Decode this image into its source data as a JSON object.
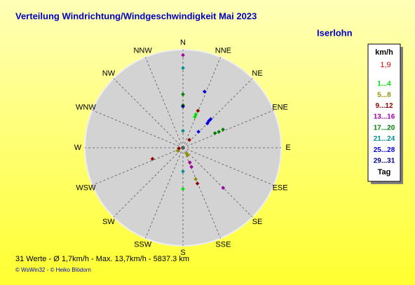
{
  "chart_data": {
    "type": "polar-scatter",
    "title": "Verteilung Windrichtung/Windgeschwindigkeit  Mai 2023",
    "location": "Iserlohn",
    "directions": [
      "N",
      "NNE",
      "NE",
      "ENE",
      "E",
      "ESE",
      "SE",
      "SSE",
      "S",
      "SSW",
      "SW",
      "WSW",
      "W",
      "WNW",
      "NW",
      "NNW"
    ],
    "rlim": [
      0,
      14.5
    ],
    "legend_title": "km/h",
    "average": {
      "value": 1.9,
      "label": "1,9",
      "color": "#e00000"
    },
    "legend_footer": "Tag",
    "series": [
      {
        "name": "1...4",
        "color": "#00e000",
        "direction": [
          21,
          21,
          180
        ],
        "speed": [
          5.3,
          4.9,
          6.1
        ]
      },
      {
        "name": "5...8",
        "color": "#909000",
        "direction": [
          148,
          148,
          158,
          240
        ],
        "speed": [
          1.0,
          1.3,
          5.0,
          0.9
        ]
      },
      {
        "name": "9...12",
        "color": "#900000",
        "direction": [
          22,
          39,
          261,
          250,
          158
        ],
        "speed": [
          5.9,
          1.5,
          0.6,
          4.8,
          5.7
        ]
      },
      {
        "name": "13...16",
        "color": "#a000a0",
        "direction": [
          0,
          155,
          156,
          135
        ],
        "speed": [
          13.7,
          2.4,
          3.1,
          8.4
        ]
      },
      {
        "name": "17...20",
        "color": "#008000",
        "direction": [
          0,
          0,
          65.5,
          66,
          65.5
        ],
        "speed": [
          7.9,
          6.3,
          6.5,
          5.8,
          5.2
        ]
      },
      {
        "name": "21...24",
        "color": "#009090",
        "direction": [
          0,
          0,
          180
        ],
        "speed": [
          11.8,
          2.5,
          3.5
        ]
      },
      {
        "name": "25...28",
        "color": "#0000e0",
        "direction": [
          21,
          44,
          44,
          45,
          44
        ],
        "speed": [
          8.9,
          5.9,
          5.5,
          5.1,
          3.3
        ]
      },
      {
        "name": "29...31",
        "color": "#000080",
        "direction": [
          0
        ],
        "speed": [
          6.1
        ]
      }
    ],
    "footer": "31 Werte   -   Ø 1,7km/h   -  Max. 13,7km/h   -   5837.3 km",
    "credit": "© WsWin32   -   © Heiko Blödorn"
  }
}
